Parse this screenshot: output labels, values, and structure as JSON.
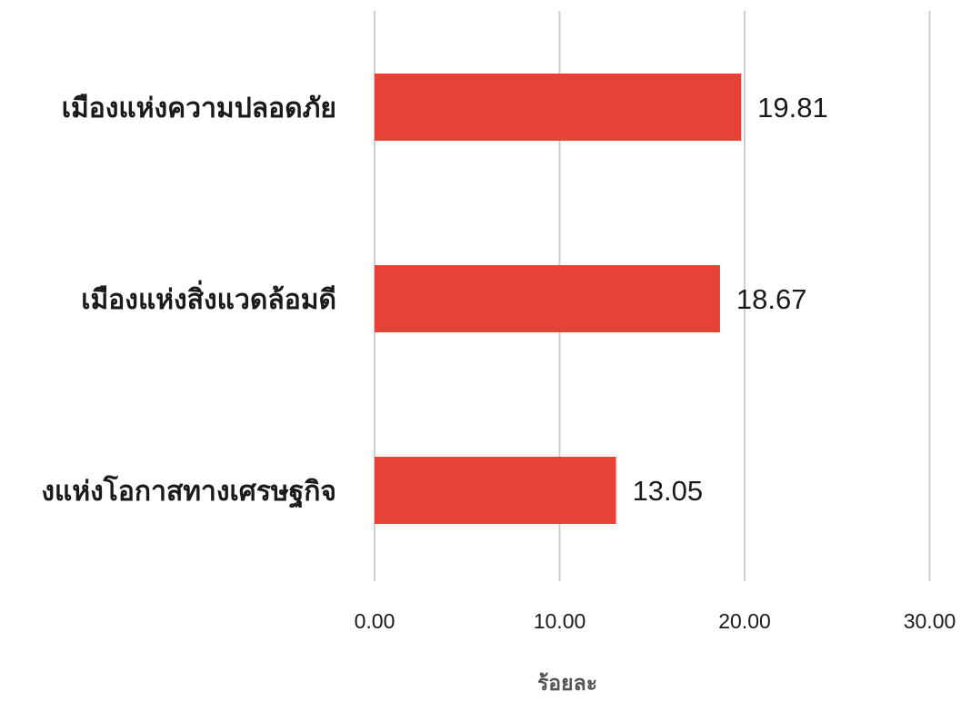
{
  "chart_data": {
    "type": "bar",
    "orientation": "horizontal",
    "categories": [
      "เมืองแห่งความปลอดภัย",
      "เมืองแห่งสิ่งแวดล้อมดี",
      "เมืองแห่งโอกาสทางเศรษฐกิจ"
    ],
    "category_labels_shown": [
      "เมืองแห่งความปลอดภัย",
      "เมืองแห่งสิ่งแวดล้อมดี",
      "งแห่งโอกาสทางเศรษฐกิจ"
    ],
    "values": [
      19.81,
      18.67,
      13.05
    ],
    "value_labels": [
      "19.81",
      "18.67",
      "13.05"
    ],
    "xlabel": "ร้อยละ",
    "xlim": [
      0,
      30
    ],
    "ticks": [
      0,
      10,
      20,
      30
    ],
    "tick_labels": [
      "0.00",
      "10.00",
      "20.00",
      "30.00"
    ],
    "bar_color": "#e84236",
    "grid": "vertical"
  }
}
